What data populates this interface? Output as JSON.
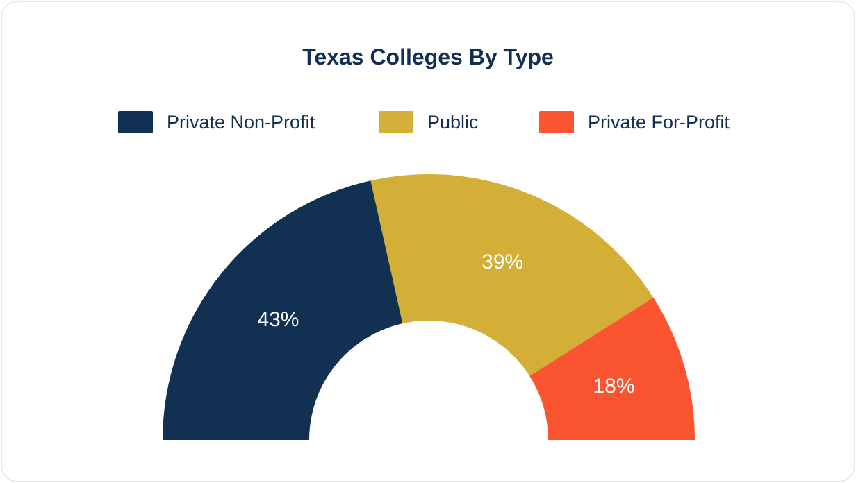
{
  "chart_data": {
    "type": "pie",
    "variant": "semicircle-donut",
    "title": "Texas Colleges By Type",
    "legend_placement": "top",
    "slices": [
      {
        "label": "Private Non-Profit",
        "value": 43,
        "value_label": "43%",
        "color": "#123052"
      },
      {
        "label": "Public",
        "value": 39,
        "value_label": "39%",
        "color": "#d3af38"
      },
      {
        "label": "Private For-Profit",
        "value": 18,
        "value_label": "18%",
        "color": "#fa5530"
      }
    ]
  }
}
